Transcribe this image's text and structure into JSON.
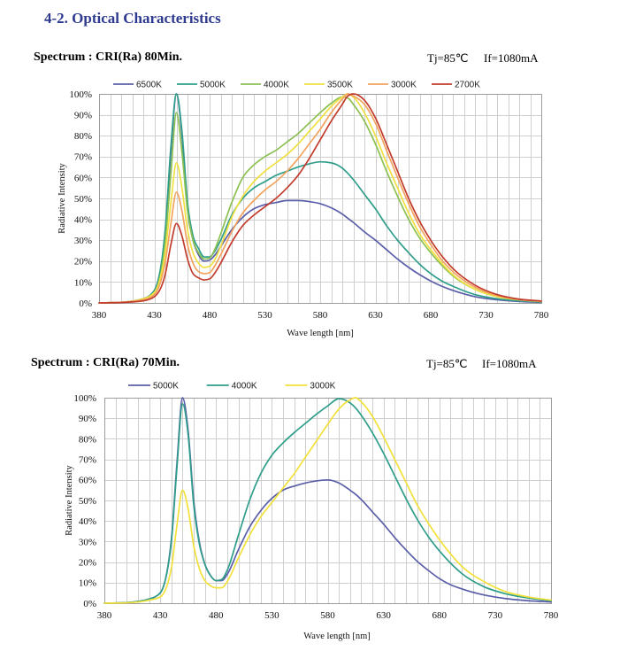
{
  "page": {
    "section_title": "4-2. Optical Characteristics"
  },
  "chart_data": [
    {
      "type": "line",
      "title": "Spectrum : CRI(Ra) 80Min.",
      "conditions": {
        "tj": "Tj=85℃",
        "if": "If=1080mA"
      },
      "xlabel": "Wave length [nm]",
      "ylabel": "Radiative Intensity",
      "xlim": [
        380,
        780
      ],
      "ylim": [
        0,
        100
      ],
      "x_ticks": [
        "380",
        "430",
        "480",
        "530",
        "580",
        "630",
        "680",
        "730",
        "780"
      ],
      "y_ticks": [
        "0%",
        "10%",
        "20%",
        "30%",
        "40%",
        "50%",
        "60%",
        "70%",
        "80%",
        "90%",
        "100%"
      ],
      "grid": true,
      "legend_position": "top",
      "x": [
        380,
        400,
        420,
        430,
        440,
        445,
        450,
        455,
        460,
        465,
        470,
        475,
        480,
        485,
        490,
        500,
        510,
        520,
        530,
        540,
        550,
        560,
        570,
        580,
        590,
        600,
        605,
        610,
        620,
        630,
        640,
        650,
        660,
        670,
        680,
        690,
        700,
        720,
        740,
        760,
        780
      ],
      "series": [
        {
          "name": "6500K",
          "color": "#5b5ea8",
          "values": [
            0,
            0.3,
            2,
            6,
            35,
            72,
            100,
            80,
            45,
            30,
            23,
            20,
            20.5,
            23,
            27,
            35,
            41,
            45,
            47,
            48,
            49,
            49,
            48.5,
            47.5,
            45.5,
            42.5,
            40.5,
            38.5,
            34,
            30,
            25.5,
            21,
            17,
            13.5,
            10.5,
            8,
            6,
            3,
            1.5,
            0.7,
            0.3
          ]
        },
        {
          "name": "5000K",
          "color": "#2e9e8a",
          "values": [
            0,
            0.3,
            2,
            6,
            36,
            75,
            100,
            82,
            48,
            32,
            26,
            22,
            22,
            25,
            30,
            42,
            50,
            55,
            58,
            61,
            63,
            65,
            66.5,
            67.5,
            67,
            64.5,
            62,
            59,
            52,
            45,
            37,
            30,
            24,
            18.5,
            14,
            10.5,
            8,
            4,
            2,
            1,
            0.5
          ]
        },
        {
          "name": "4000K",
          "color": "#8cc152",
          "values": [
            0,
            0.3,
            2,
            5,
            30,
            62,
            91,
            72,
            44,
            30,
            24,
            21,
            21.5,
            26,
            33,
            48,
            60,
            66,
            70,
            73,
            77,
            81,
            86,
            91,
            95.5,
            98.5,
            98,
            95,
            87,
            76,
            63,
            51,
            40,
            31,
            24,
            18,
            13,
            6.5,
            3,
            1.5,
            0.7
          ]
        },
        {
          "name": "3500K",
          "color": "#f0e040",
          "values": [
            0,
            0.3,
            2,
            5,
            25,
            48,
            67,
            55,
            35,
            24,
            19,
            17,
            17.5,
            21,
            27,
            41,
            51,
            58,
            63,
            67,
            71,
            76,
            82,
            88,
            94,
            98.5,
            100,
            98.5,
            91,
            80,
            67,
            55,
            43,
            33,
            25.5,
            19,
            13.5,
            6.5,
            3,
            1.5,
            0.7
          ]
        },
        {
          "name": "3000K",
          "color": "#f2a35e",
          "values": [
            0,
            0.3,
            1.5,
            4,
            20,
            38,
            53,
            44,
            28,
            19,
            15,
            14,
            14.5,
            18,
            23,
            34,
            43,
            49,
            54,
            58,
            63,
            69,
            76,
            83,
            91,
            97.5,
            100,
            99,
            95,
            86,
            73,
            60,
            47.5,
            36.5,
            28,
            20.5,
            15,
            7.5,
            3.5,
            1.6,
            0.8
          ]
        },
        {
          "name": "2700K",
          "color": "#c23b2c",
          "values": [
            0,
            0.2,
            1,
            3,
            14,
            28,
            38,
            32,
            21,
            14,
            12,
            11,
            11.5,
            14.5,
            19,
            29,
            37,
            42,
            46,
            50,
            55,
            61,
            69,
            78,
            87,
            95,
            99,
            100,
            97,
            88.5,
            76,
            63,
            50,
            39,
            30,
            22.5,
            16.5,
            8.5,
            4,
            1.8,
            0.9
          ]
        }
      ]
    },
    {
      "type": "line",
      "title": "Spectrum : CRI(Ra) 70Min.",
      "conditions": {
        "tj": "Tj=85℃",
        "if": "If=1080mA"
      },
      "xlabel": "Wave length [nm]",
      "ylabel": "Radiative Intensity",
      "xlim": [
        380,
        780
      ],
      "ylim": [
        0,
        100
      ],
      "x_ticks": [
        "380",
        "430",
        "480",
        "530",
        "580",
        "630",
        "680",
        "730",
        "780"
      ],
      "y_ticks": [
        "0%",
        "10%",
        "20%",
        "30%",
        "40%",
        "50%",
        "60%",
        "70%",
        "80%",
        "90%",
        "100%"
      ],
      "grid": true,
      "legend_position": "top",
      "x": [
        380,
        400,
        420,
        430,
        440,
        445,
        450,
        455,
        460,
        465,
        470,
        475,
        480,
        485,
        490,
        500,
        510,
        520,
        530,
        540,
        550,
        560,
        570,
        580,
        590,
        600,
        605,
        610,
        620,
        630,
        640,
        650,
        660,
        670,
        680,
        690,
        700,
        720,
        740,
        760,
        780
      ],
      "series": [
        {
          "name": "5000K",
          "color": "#5b5ea8",
          "values": [
            0,
            0.3,
            2,
            5,
            31,
            68,
            100,
            84,
            50,
            30,
            19,
            13.5,
            11,
            11,
            14,
            26,
            37,
            45,
            51,
            55,
            57,
            58.5,
            59.5,
            60,
            58.5,
            55,
            53,
            50.5,
            44.5,
            38.5,
            32,
            26,
            20.5,
            16,
            12,
            9,
            7,
            4,
            2.2,
            1.2,
            0.6
          ]
        },
        {
          "name": "4000K",
          "color": "#2e9e8a",
          "values": [
            0,
            0.3,
            2,
            5,
            30,
            66,
            97,
            82,
            48,
            29,
            19,
            13.5,
            11,
            11.5,
            16,
            33,
            50,
            63,
            72,
            78,
            83,
            87.5,
            92,
            96,
            99.5,
            97.5,
            95,
            91.5,
            83,
            73,
            62,
            51,
            41,
            32.5,
            25.5,
            19.5,
            14.5,
            8,
            4.5,
            2.5,
            1.2
          ]
        },
        {
          "name": "3000K",
          "color": "#f2e13a",
          "values": [
            0,
            0.2,
            1.5,
            3,
            17,
            38,
            55,
            46,
            28,
            17,
            11,
            8.5,
            7.5,
            7.5,
            10.5,
            22,
            33,
            42,
            49,
            56,
            63,
            71,
            79,
            87,
            94.5,
            99,
            100,
            98,
            91,
            81,
            70,
            59,
            48,
            39,
            31,
            24,
            18,
            10.5,
            5.5,
            3,
            1.5
          ]
        }
      ]
    }
  ]
}
